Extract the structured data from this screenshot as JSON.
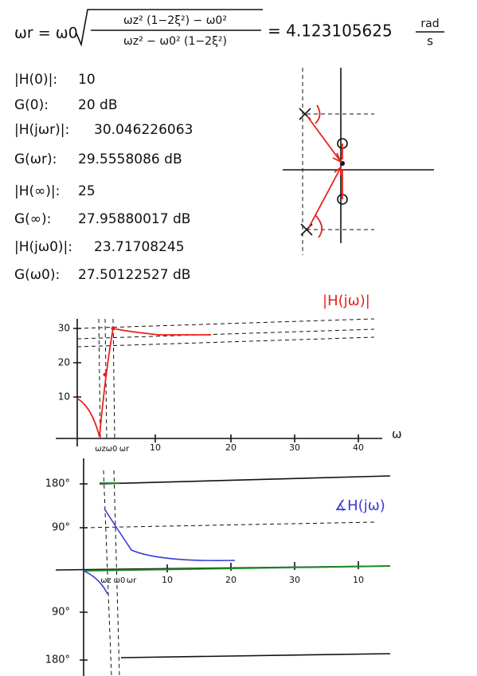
{
  "formula": {
    "lhs": "ωr = ω0",
    "numerator": "ωz² (1−2ξ²) − ω0²",
    "denominator": "ωz² − ω0² (1−2ξ²)",
    "result": "= 4.123105625",
    "unit_top": "rad",
    "unit_bottom": "s"
  },
  "results": [
    {
      "label": "|H(0)|:",
      "value": "10"
    },
    {
      "label": "G(0):",
      "value": "20 dB"
    },
    {
      "label": "|H(jωr)|:",
      "value": "30.046226063"
    },
    {
      "label": "G(ωr):",
      "value": "29.5558086 dB"
    },
    {
      "label": "|H(∞)|:",
      "value": "25"
    },
    {
      "label": "G(∞):",
      "value": "27.95880017 dB"
    },
    {
      "label": "|H(jω0)|:",
      "value": "23.71708245"
    },
    {
      "label": "G(ω0):",
      "value": "27.50122527 dB"
    }
  ],
  "magnitude_plot": {
    "title": "|H(jω)|",
    "y_labels": [
      "30",
      "20",
      "10"
    ],
    "x_labels": [
      "10",
      "20",
      "30",
      "40"
    ],
    "axis_label": "ω",
    "markers": [
      "ωz",
      "ω0",
      "ωr"
    ]
  },
  "phase_plot": {
    "title": "∡H(jω)",
    "y_labels": [
      "180°",
      "90°",
      "90°",
      "180°"
    ],
    "x_labels": [
      "10",
      "20",
      "30",
      "10"
    ],
    "markers": [
      "ωz",
      "ω0",
      "ωr"
    ]
  }
}
